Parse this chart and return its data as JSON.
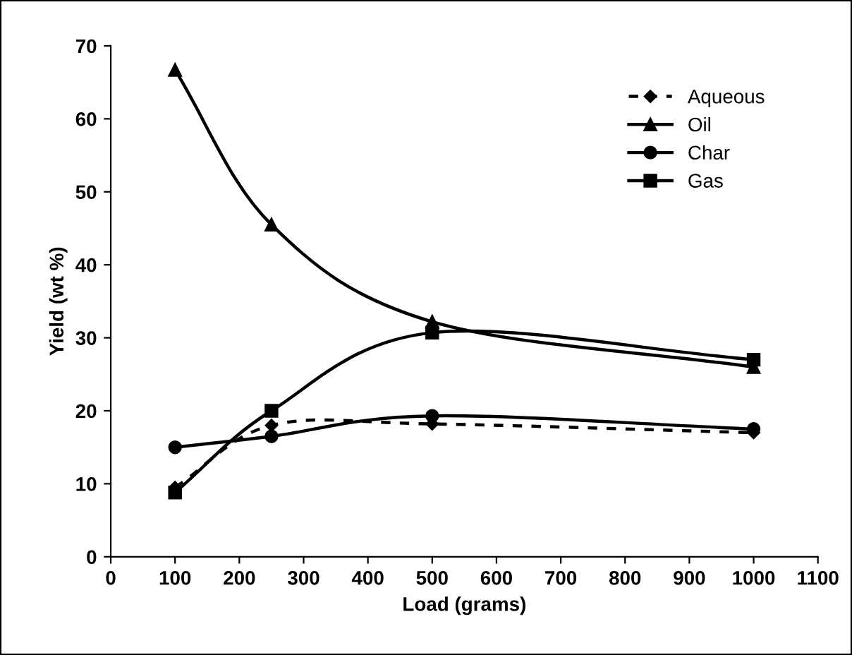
{
  "chart_data": {
    "type": "line",
    "xlabel": "Load (grams)",
    "ylabel": "Yield (wt %)",
    "x": [
      100,
      250,
      500,
      1000
    ],
    "series": [
      {
        "name": "Aqueous",
        "color": "#000000",
        "values": [
          9.5,
          18,
          18.2,
          17
        ],
        "marker": "diamond",
        "line_style": "dashed"
      },
      {
        "name": "Oil",
        "color": "#000000",
        "values": [
          66.7,
          45.5,
          32.2,
          26
        ],
        "marker": "triangle",
        "line_style": "solid"
      },
      {
        "name": "Char",
        "color": "#000000",
        "values": [
          15,
          16.5,
          19.3,
          17.5
        ],
        "marker": "circle",
        "line_style": "solid"
      },
      {
        "name": "Gas",
        "color": "#000000",
        "values": [
          8.8,
          20,
          30.7,
          27
        ],
        "marker": "square",
        "line_style": "solid"
      }
    ],
    "xlim": [
      0,
      1100
    ],
    "xticks": [
      0,
      100,
      200,
      300,
      400,
      500,
      600,
      700,
      800,
      900,
      1000,
      1100
    ],
    "ylim": [
      0,
      70
    ],
    "yticks": [
      0,
      10,
      20,
      30,
      40,
      50,
      60,
      70
    ],
    "grid": false,
    "legend": "top right"
  }
}
